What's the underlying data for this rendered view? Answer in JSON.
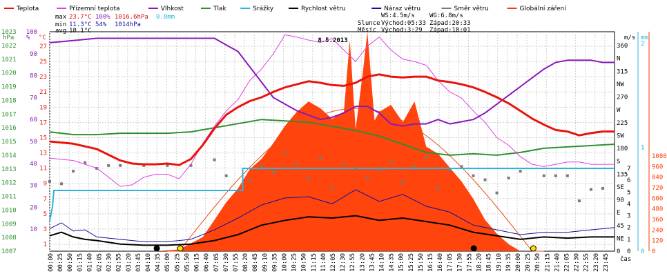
{
  "chart_data": {
    "type": "line",
    "title": "8.5.2013",
    "legend_position": "top",
    "grid": true,
    "legend": [
      {
        "name": "Teplota",
        "color": "#e8140e"
      },
      {
        "name": "Přízemní teplota",
        "color": "#e040e0"
      },
      {
        "name": "Vlhkost",
        "color": "#8a18b8"
      },
      {
        "name": "Tlak",
        "color": "#2f8f2f"
      },
      {
        "name": "Srážky",
        "color": "#29b6df"
      },
      {
        "name": "Rychlost větru",
        "color": "#000000"
      },
      {
        "name": "Náraz větru",
        "color": "#10109a"
      },
      {
        "name": "Směr větru",
        "color": "#7a7a7a"
      },
      {
        "name": "Globální záření",
        "color": "#ff3a00"
      }
    ],
    "stats": {
      "max": {
        "label": "max",
        "temp": "23.7°C",
        "hum": "100%",
        "press": "1016.6hPa",
        "rain": "0.8mm"
      },
      "min": {
        "label": "min",
        "temp": "11.3°C",
        "hum": "54%",
        "press": "1014hPa"
      },
      "avg": {
        "label": "avg",
        "temp": "18.1°C"
      }
    },
    "sun": {
      "ws": "WS:4.5m/s",
      "wg": "WG:6.8m/s",
      "slunce_label": "Slunce",
      "slunce_rise": "Východ:05:33",
      "slunce_set": "Západ:20:33",
      "mesic_label": "Měsíc",
      "mesic_rise": "Východ:3:29",
      "mesic_set": "Západ:18:01"
    },
    "axes": {
      "pressure": {
        "unit": "hPa",
        "ticks": [
          "1023",
          "1022",
          "1021",
          "1020",
          "1019",
          "1018",
          "1017",
          "1016",
          "1015",
          "1014",
          "1013",
          "1012",
          "1011",
          "1010",
          "1009",
          "1008",
          "1007"
        ],
        "ylim": [
          1007,
          1023
        ]
      },
      "humidity": {
        "unit": "%",
        "ticks": [
          "100",
          "90",
          "80",
          "70",
          "60",
          "50",
          "40",
          "30",
          "20",
          "10"
        ],
        "ylim": [
          0,
          100
        ]
      },
      "temperature": {
        "unit": "°C",
        "ticks": [
          "27",
          "25",
          "23",
          "21",
          "19",
          "17",
          "15",
          "13",
          "11",
          "9",
          "7",
          "5",
          "3",
          "1"
        ],
        "ylim": [
          0.1,
          28.9
        ]
      },
      "wind": {
        "unit": "m/s",
        "ticks": [
          "7",
          "6",
          "5",
          "4",
          "3",
          "2",
          "1",
          "0"
        ]
      },
      "direction": {
        "ticks": [
          "360",
          "N",
          "315",
          "NW",
          "270",
          "W",
          "225",
          "SW",
          "180",
          "S",
          "135",
          "SE",
          "90",
          "E",
          "45",
          "NE",
          "0"
        ]
      },
      "rain": {
        "unit": "mm",
        "ticks": [
          "2",
          "1",
          "0"
        ]
      },
      "radiation": {
        "ticks": [
          "1080",
          "960",
          "840",
          "720",
          "600",
          "480",
          "360",
          "240",
          "120",
          "0"
        ]
      },
      "x": {
        "label": "čas",
        "ticks": [
          "00:00",
          "00:25",
          "00:50",
          "01:15",
          "01:40",
          "02:05",
          "02:30",
          "02:55",
          "03:20",
          "03:45",
          "04:10",
          "04:35",
          "05:00",
          "05:25",
          "05:50",
          "06:15",
          "06:40",
          "07:05",
          "07:30",
          "07:55",
          "08:20",
          "08:45",
          "09:10",
          "09:35",
          "10:00",
          "10:25",
          "10:50",
          "11:15",
          "11:40",
          "12:05",
          "12:30",
          "12:55",
          "13:20",
          "13:45",
          "14:10",
          "14:35",
          "15:00",
          "15:25",
          "15:50",
          "16:15",
          "16:40",
          "17:05",
          "17:30",
          "17:55",
          "18:20",
          "18:45",
          "19:10",
          "19:35",
          "20:00",
          "20:25",
          "20:50",
          "21:15",
          "21:40",
          "22:05",
          "22:30",
          "22:55",
          "23:20",
          "23:45"
        ]
      }
    },
    "series": [
      {
        "name": "Teplota",
        "x": [
          0,
          1,
          2,
          3,
          3.5,
          4,
          4.5,
          5,
          5.5,
          6,
          6.5,
          7,
          7.5,
          8,
          8.5,
          9,
          9.5,
          10,
          10.5,
          11,
          11.5,
          12,
          12.5,
          13,
          13.5,
          14,
          14.5,
          15,
          15.5,
          16,
          16.5,
          17,
          17.5,
          18,
          18.5,
          19,
          19.5,
          20,
          20.5,
          21,
          21.5,
          22,
          22.5,
          23,
          23.5,
          24
        ],
        "values": [
          14.5,
          14.2,
          13.5,
          12.0,
          11.6,
          11.5,
          11.5,
          11.6,
          11.4,
          12.2,
          14.0,
          16.2,
          18.0,
          19.0,
          19.8,
          20.3,
          21.0,
          21.6,
          22.0,
          22.4,
          22.2,
          21.9,
          21.8,
          22.2,
          23.0,
          23.3,
          23.0,
          22.9,
          23.0,
          23.0,
          22.5,
          22.3,
          22.0,
          21.6,
          21.0,
          20.3,
          19.5,
          18.5,
          17.5,
          16.7,
          16.0,
          15.8,
          15.3,
          15.6,
          15.8,
          15.8
        ]
      },
      {
        "name": "Přízemní teplota",
        "x": [
          0,
          1,
          2,
          3,
          3.5,
          4,
          4.5,
          5,
          5.5,
          6,
          6.5,
          7,
          7.5,
          8,
          8.5,
          9,
          9.5,
          10,
          10.5,
          11,
          11.5,
          12,
          12.5,
          13,
          13.5,
          14,
          14.5,
          15,
          15.5,
          16,
          16.5,
          17,
          17.5,
          18,
          18.5,
          19,
          19.5,
          20,
          20.5,
          21,
          21.5,
          22,
          22.5,
          23,
          23.5,
          24
        ],
        "values": [
          12.3,
          12.0,
          11.0,
          8.6,
          8.8,
          9.8,
          10.2,
          10.2,
          9.6,
          11.5,
          14.2,
          16.5,
          18.5,
          20.0,
          22.5,
          24.0,
          26.0,
          28.5,
          28.2,
          27.8,
          27.5,
          28.0,
          26.5,
          25.0,
          27.0,
          28.2,
          26.5,
          25.3,
          25.0,
          24.5,
          22.5,
          21.0,
          20.2,
          18.5,
          17.0,
          15.0,
          14.0,
          12.5,
          11.5,
          11.2,
          11.5,
          11.8,
          11.8,
          11.5,
          11.5,
          11.5
        ]
      },
      {
        "name": "Vlhkost",
        "x": [
          0,
          1,
          2,
          3,
          4,
          5,
          6,
          7,
          7.5,
          8,
          8.5,
          9,
          9.5,
          10,
          10.5,
          11,
          11.5,
          12,
          12.5,
          13,
          13.5,
          14,
          14.5,
          15,
          15.5,
          16,
          16.5,
          17,
          17.5,
          18,
          18.5,
          19,
          19.5,
          20,
          20.5,
          21,
          21.5,
          22,
          22.5,
          23,
          23.5,
          24
        ],
        "values": [
          95,
          96,
          97,
          97,
          97,
          97,
          97,
          97,
          94,
          91,
          84,
          77,
          70,
          67,
          64,
          62,
          60,
          61,
          63,
          66,
          66,
          63,
          58,
          57,
          58,
          58,
          60,
          58,
          59,
          60,
          63,
          67,
          71,
          75,
          79,
          83,
          86,
          87,
          87,
          87,
          86,
          86
        ]
      },
      {
        "name": "Tlak",
        "x": [
          0,
          1,
          2,
          3,
          4,
          5,
          6,
          7,
          8,
          9,
          10,
          11,
          12,
          13,
          14,
          15,
          16,
          17,
          18,
          19,
          20,
          21,
          22,
          23,
          24
        ],
        "values": [
          1015.7,
          1015.5,
          1015.5,
          1015.6,
          1015.6,
          1015.6,
          1015.7,
          1016.0,
          1016.3,
          1016.6,
          1016.5,
          1016.4,
          1016.1,
          1015.8,
          1015.4,
          1014.8,
          1014.2,
          1014.0,
          1014.1,
          1014.0,
          1014.2,
          1014.5,
          1014.6,
          1014.7,
          1014.8
        ]
      },
      {
        "name": "Rychlost větru",
        "x": [
          0,
          0.5,
          1,
          1.5,
          2,
          3,
          4,
          5,
          6,
          7,
          8,
          9,
          10,
          11,
          12,
          13,
          14,
          15,
          16,
          17,
          18,
          19,
          20,
          21,
          22,
          23,
          24
        ],
        "values": [
          1.3,
          1.6,
          1.2,
          1.0,
          0.9,
          0.6,
          0.5,
          0.5,
          0.6,
          0.9,
          1.4,
          2.2,
          2.6,
          2.9,
          2.8,
          3.0,
          2.6,
          2.8,
          2.5,
          2.2,
          1.6,
          1.3,
          1.0,
          1.2,
          1.1,
          1.2,
          1.2
        ]
      },
      {
        "name": "Náraz větru",
        "x": [
          0,
          0.5,
          1,
          1.5,
          2,
          3,
          4,
          5,
          6,
          7,
          8,
          9,
          10,
          11,
          12,
          13,
          14,
          15,
          16,
          17,
          18,
          19,
          20,
          21,
          22,
          23,
          24
        ],
        "values": [
          1.9,
          2.4,
          1.7,
          1.8,
          1.2,
          1.0,
          0.8,
          0.8,
          1.0,
          1.8,
          2.8,
          3.9,
          4.5,
          4.6,
          4.0,
          5.2,
          4.2,
          4.8,
          3.8,
          3.3,
          2.2,
          1.8,
          1.4,
          1.6,
          1.6,
          1.8,
          2.0
        ]
      },
      {
        "name": "Globální záření",
        "type": "area",
        "x": [
          0,
          4.5,
          5.5,
          6.5,
          7,
          7.5,
          8,
          8.5,
          9,
          9.5,
          10,
          10.5,
          11,
          11.5,
          12,
          12.5,
          12.75,
          13,
          13.3,
          13.5,
          13.8,
          14,
          14.5,
          15,
          15.5,
          16,
          16.5,
          17,
          17.5,
          18,
          18.5,
          19,
          19.5,
          20,
          24
        ],
        "values": [
          0,
          0,
          10,
          80,
          180,
          280,
          360,
          470,
          530,
          620,
          720,
          800,
          860,
          820,
          760,
          800,
          1210,
          700,
          1020,
          1260,
          750,
          800,
          840,
          740,
          860,
          600,
          560,
          480,
          400,
          300,
          180,
          100,
          40,
          0,
          0
        ]
      },
      {
        "name": "Směr větru",
        "type": "scatter",
        "x": [
          0,
          0.5,
          1,
          1.5,
          2,
          2.5,
          3,
          4,
          5,
          6,
          7,
          7.5,
          8,
          8.5,
          9,
          9.5,
          10,
          10.5,
          11,
          11.5,
          12,
          12.5,
          13,
          13.5,
          14,
          14.5,
          15,
          15.5,
          16,
          16.5,
          17,
          17.5,
          18,
          18.5,
          19,
          19.5,
          20,
          21,
          21.5,
          22,
          22.5,
          23,
          23.5
        ],
        "values": [
          122,
          118,
          140,
          155,
          145,
          150,
          150,
          150,
          150,
          150,
          160,
          132,
          105,
          125,
          148,
          138,
          172,
          152,
          128,
          162,
          110,
          152,
          145,
          128,
          142,
          158,
          120,
          148,
          165,
          110,
          142,
          148,
          132,
          125,
          102,
          128,
          140,
          132,
          132,
          132,
          88,
          108,
          110
        ]
      }
    ]
  }
}
